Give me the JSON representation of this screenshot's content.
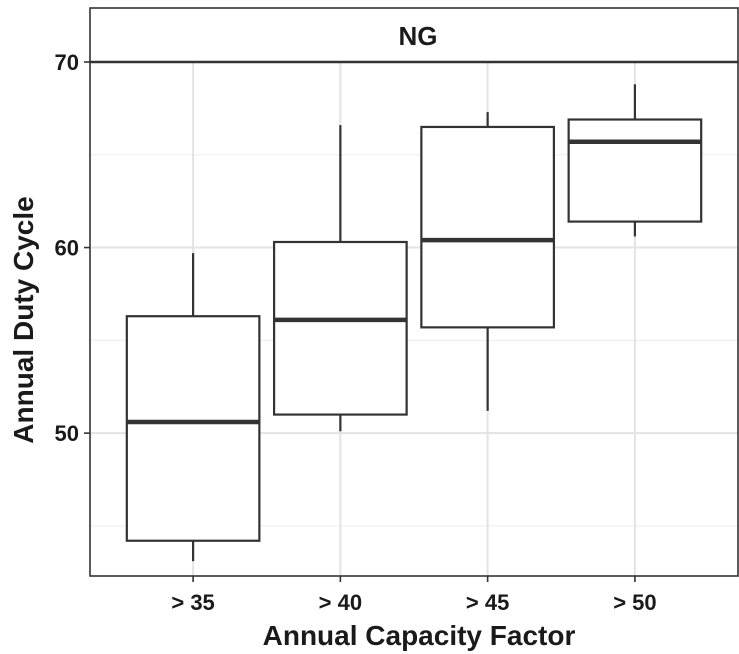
{
  "chart_data": {
    "type": "box",
    "panel_label": "NG",
    "xlabel": "Annual Capacity Factor",
    "ylabel": "Annual Duty Cycle",
    "categories": [
      "> 35",
      "> 40",
      "> 45",
      "> 50"
    ],
    "boxes": [
      {
        "category": "> 35",
        "whisker_low": 43.1,
        "q1": 44.2,
        "median": 50.6,
        "q3": 56.3,
        "whisker_high": 59.7
      },
      {
        "category": "> 40",
        "whisker_low": 50.1,
        "q1": 51.0,
        "median": 56.1,
        "q3": 60.3,
        "whisker_high": 66.6
      },
      {
        "category": "> 45",
        "whisker_low": 51.2,
        "q1": 55.7,
        "median": 60.4,
        "q3": 66.5,
        "whisker_high": 67.3
      },
      {
        "category": "> 50",
        "whisker_low": 60.6,
        "q1": 61.4,
        "median": 65.7,
        "q3": 66.9,
        "whisker_high": 68.8
      }
    ],
    "y_ticks": [
      50,
      60,
      70
    ],
    "ylim": [
      42.3,
      70
    ],
    "grid": true
  }
}
